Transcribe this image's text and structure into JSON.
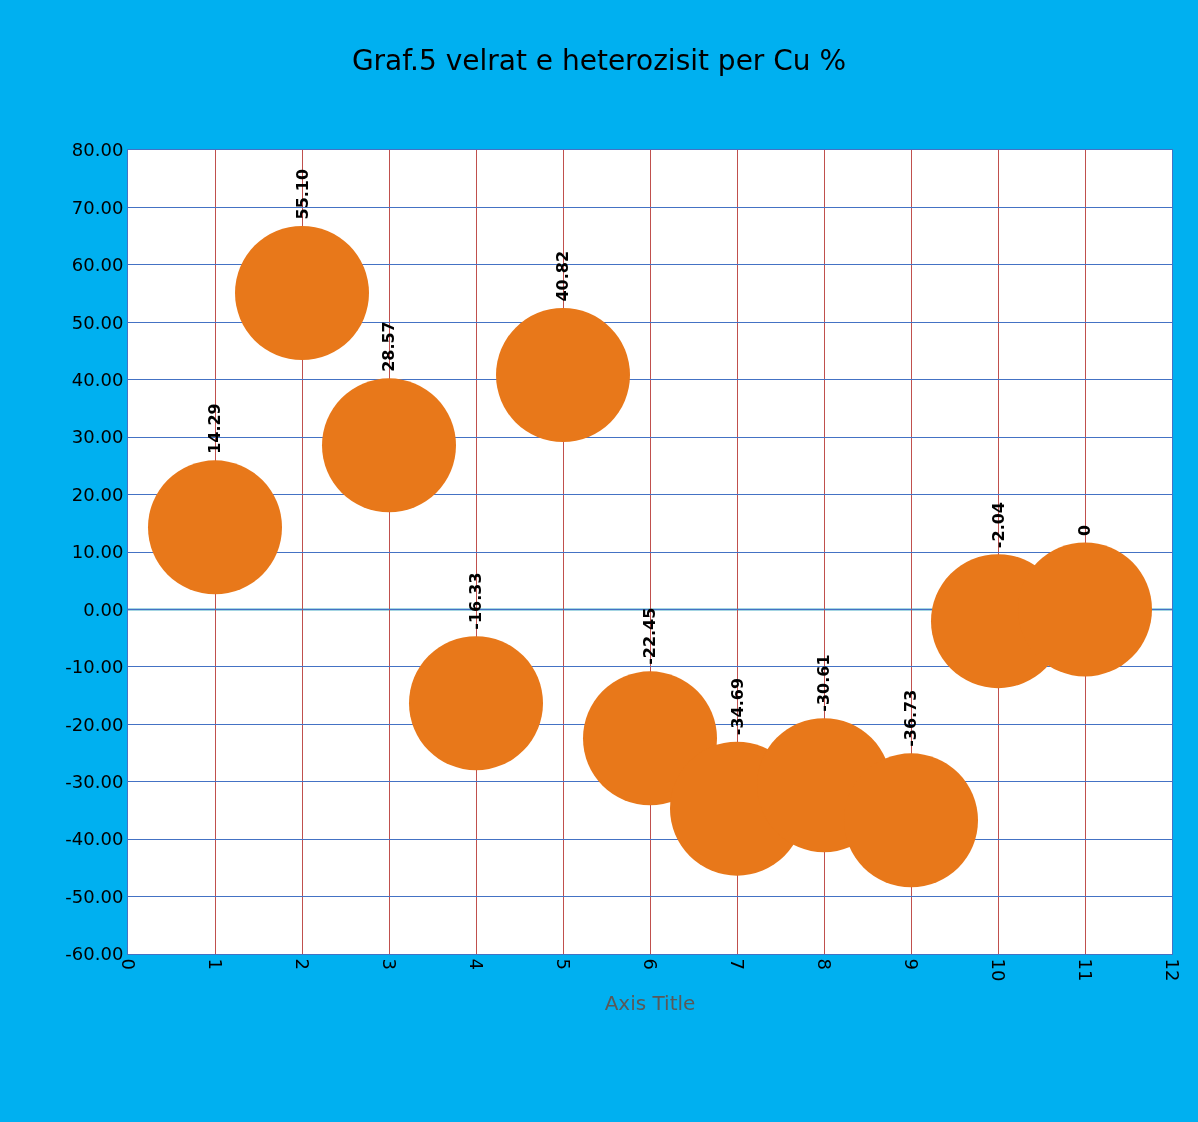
{
  "chart_data": {
    "type": "bubble",
    "title": "Graf.5 velrat e heterozisit per Cu %",
    "xlabel": "Axis Title",
    "x": [
      1,
      2,
      3,
      4,
      5,
      6,
      7,
      8,
      9,
      10,
      11
    ],
    "values": [
      14.29,
      55.1,
      28.57,
      -16.33,
      40.82,
      -22.45,
      -34.69,
      -30.61,
      -36.73,
      -2.04,
      0
    ],
    "value_labels": [
      "14.29",
      "55.10",
      "28.57",
      "-16.33",
      "40.82",
      "-22.45",
      "-34.69",
      "-30.61",
      "-36.73",
      "-2.04",
      "0"
    ],
    "sizes": [
      1,
      1,
      1,
      1,
      1,
      1,
      1,
      1,
      1,
      1,
      1
    ],
    "color": "#e8781a",
    "xlim": [
      0,
      12
    ],
    "xticks": [
      0,
      1,
      2,
      3,
      4,
      5,
      6,
      7,
      8,
      9,
      10,
      11,
      12
    ],
    "ylim": [
      -60,
      80
    ],
    "yticks": [
      {
        "value": -60,
        "label": "-60.00"
      },
      {
        "value": -50,
        "label": "-50.00"
      },
      {
        "value": -40,
        "label": "-40.00"
      },
      {
        "value": -30,
        "label": "-30.00"
      },
      {
        "value": -20,
        "label": "-20.00"
      },
      {
        "value": -10,
        "label": "-10.00"
      },
      {
        "value": 0,
        "label": "0.00"
      },
      {
        "value": 10,
        "label": "10.00"
      },
      {
        "value": 20,
        "label": "20.00"
      },
      {
        "value": 30,
        "label": "30.00"
      },
      {
        "value": 40,
        "label": "40.00"
      },
      {
        "value": 50,
        "label": "50.00"
      },
      {
        "value": 60,
        "label": "60.00"
      },
      {
        "value": 70,
        "label": "70.00"
      },
      {
        "value": 80,
        "label": "80.00"
      }
    ],
    "ref_lines": [
      {
        "axis": "y",
        "value": 0,
        "color": "#4bacc6"
      }
    ],
    "grid": true
  }
}
